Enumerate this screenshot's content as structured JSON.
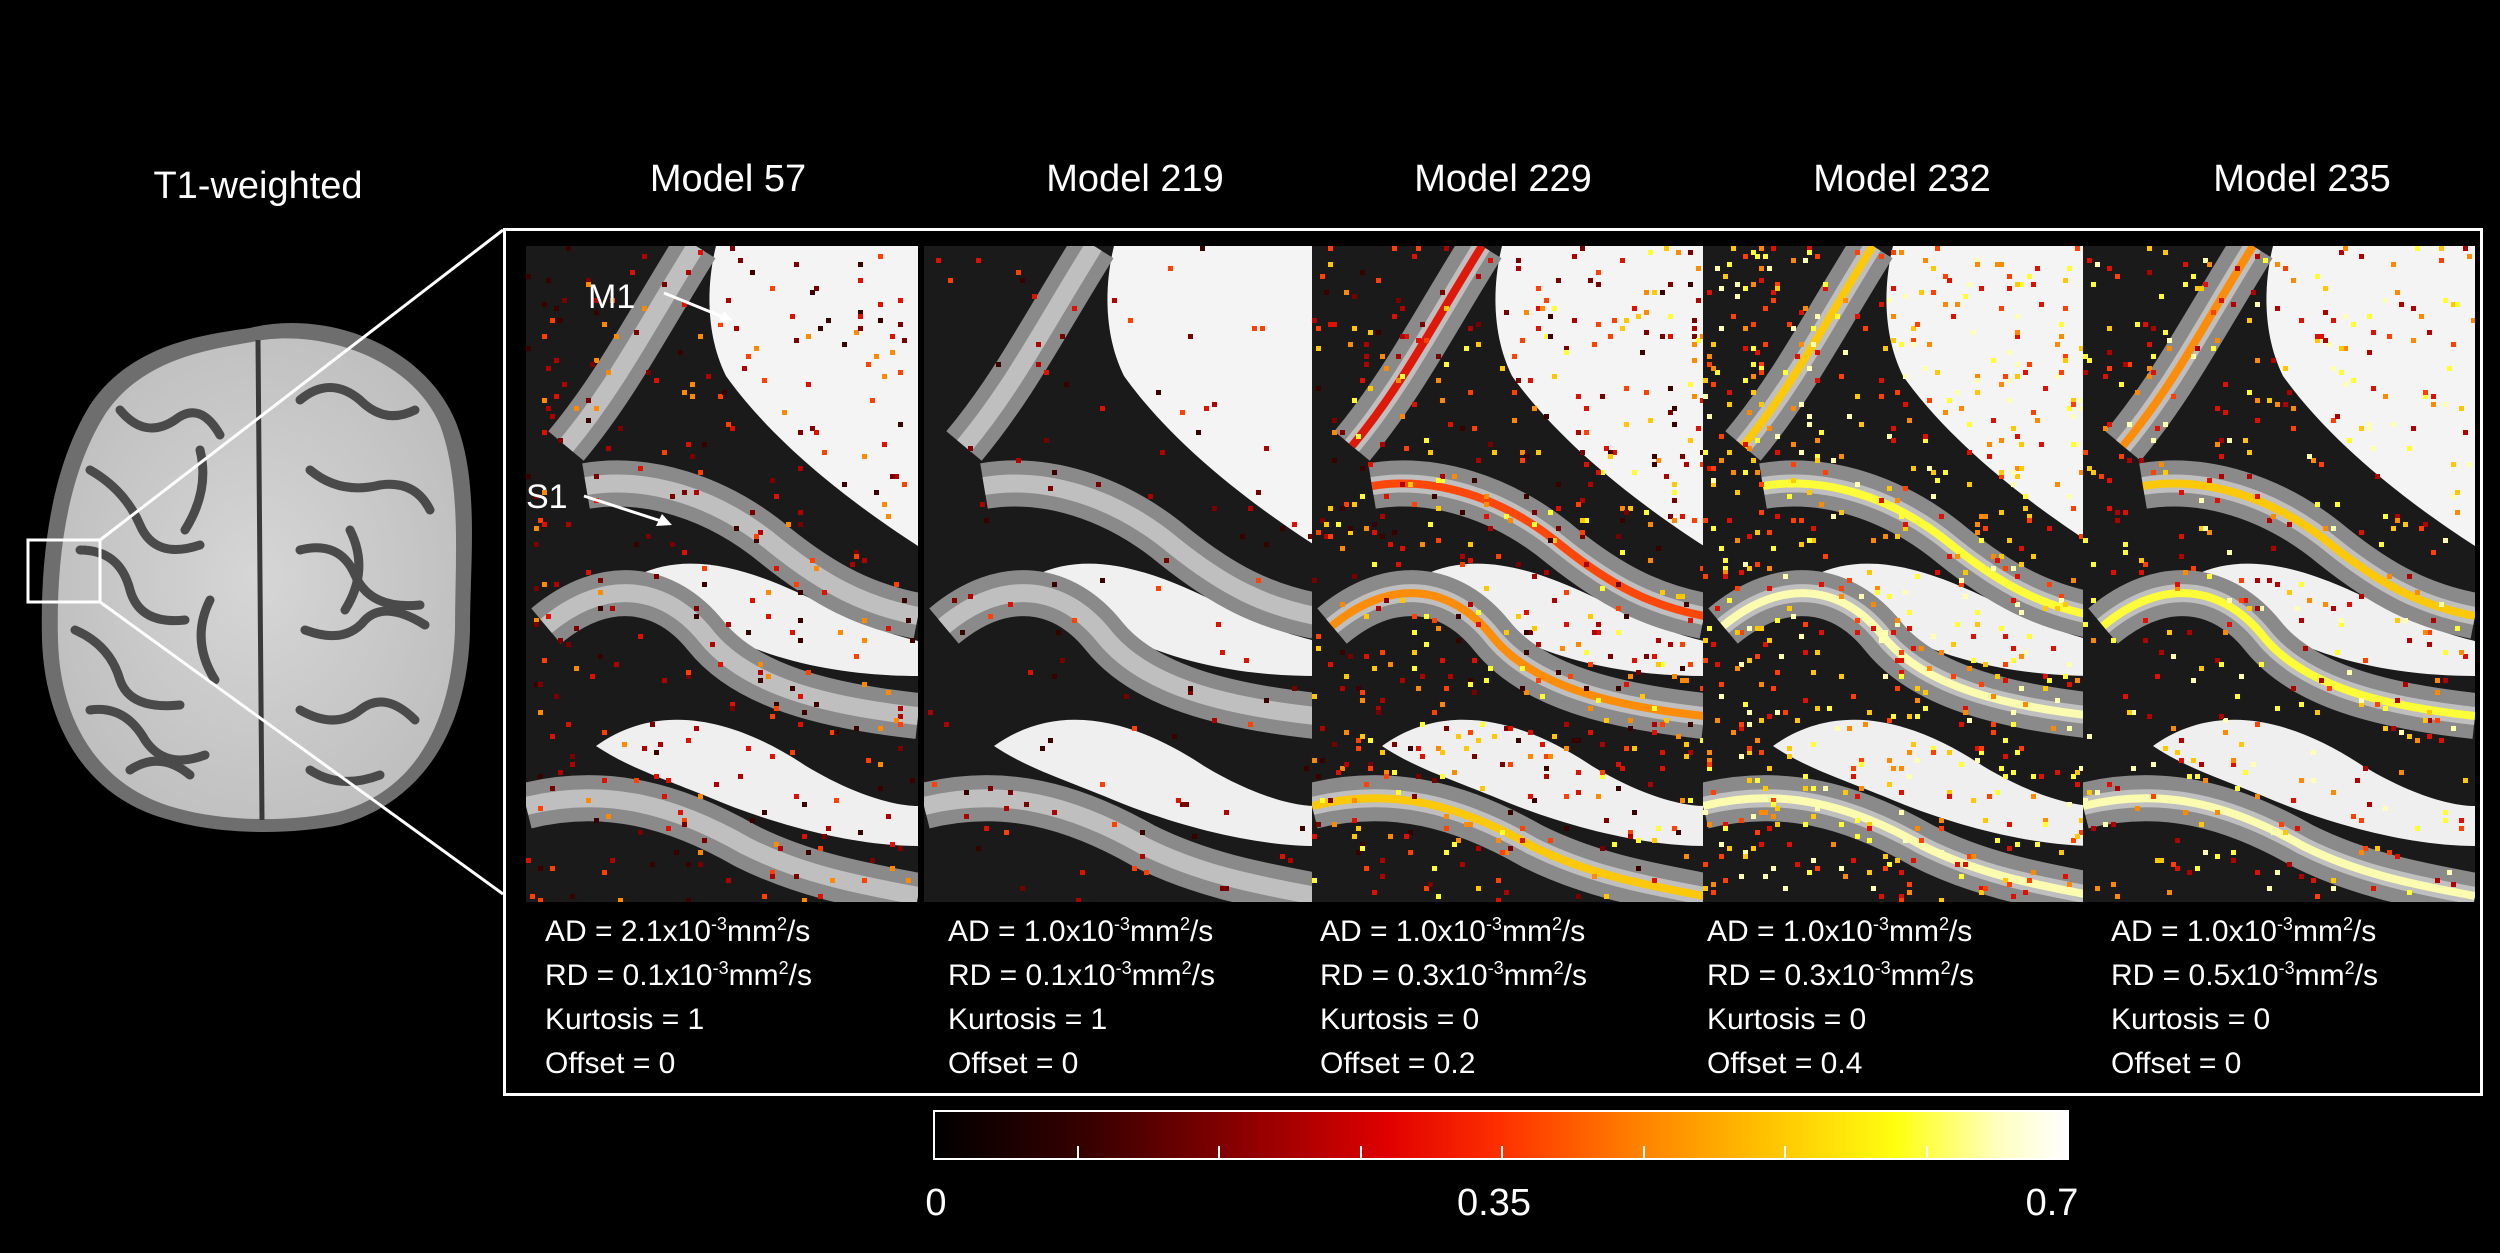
{
  "left_title": "T1-weighted",
  "annotations": {
    "m1": "M1",
    "s1": "S1"
  },
  "models": [
    {
      "title": "Model 57",
      "ad_pre": "AD = 2.1x10",
      "rd_pre": "RD = 0.1x10",
      "kurtosis": "Kurtosis = 1",
      "offset": "Offset = 0"
    },
    {
      "title": "Model 219",
      "ad_pre": "AD = 1.0x10",
      "rd_pre": "RD = 0.1x10",
      "kurtosis": "Kurtosis = 1",
      "offset": "Offset = 0"
    },
    {
      "title": "Model 229",
      "ad_pre": "AD = 1.0x10",
      "rd_pre": "RD = 0.3x10",
      "kurtosis": "Kurtosis = 0",
      "offset": "Offset = 0.2"
    },
    {
      "title": "Model 232",
      "ad_pre": "AD = 1.0x10",
      "rd_pre": "RD = 0.3x10",
      "kurtosis": "Kurtosis = 0",
      "offset": "Offset = 0.4"
    },
    {
      "title": "Model 235",
      "ad_pre": "AD = 1.0x10",
      "rd_pre": "RD = 0.5x10",
      "kurtosis": "Kurtosis = 0",
      "offset": "Offset = 0"
    }
  ],
  "units": {
    "exp": "-3",
    "mm": "mm",
    "sq": "2",
    "per_s": "/s"
  },
  "colorbar": {
    "min": "0",
    "mid": "0.35",
    "max": "0.7",
    "colormap": "hot"
  },
  "colors": {
    "background": "#000000",
    "frame": "#ffffff"
  }
}
